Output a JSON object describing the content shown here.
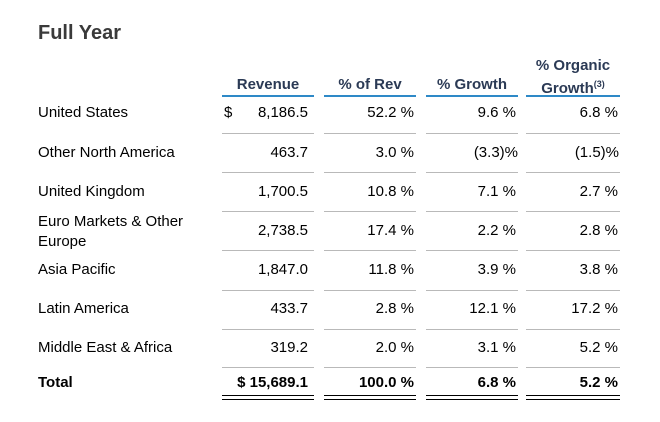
{
  "title": "Full Year",
  "columns": {
    "revenue": "Revenue",
    "pct_rev": "% of Rev",
    "pct_growth": "% Growth",
    "organic_line1": "% Organic",
    "organic_line2": "Growth",
    "organic_footnote": "(3)"
  },
  "currency_symbol": "$",
  "rows": [
    {
      "label": "United States",
      "revenue": "8,186.5",
      "pct_rev": "52.2 %",
      "growth": "9.6 %",
      "organic": "6.8 %"
    },
    {
      "label": "Other North America",
      "revenue": "463.7",
      "pct_rev": "3.0 %",
      "growth": "(3.3)%",
      "organic": "(1.5)%"
    },
    {
      "label": "United Kingdom",
      "revenue": "1,700.5",
      "pct_rev": "10.8 %",
      "growth": "7.1 %",
      "organic": "2.7 %"
    },
    {
      "label": "Euro Markets & Other Europe",
      "revenue": "2,738.5",
      "pct_rev": "17.4 %",
      "growth": "2.2 %",
      "organic": "2.8 %"
    },
    {
      "label": "Asia Pacific",
      "revenue": "1,847.0",
      "pct_rev": "11.8 %",
      "growth": "3.9 %",
      "organic": "3.8 %"
    },
    {
      "label": "Latin America",
      "revenue": "433.7",
      "pct_rev": "2.8 %",
      "growth": "12.1 %",
      "organic": "17.2 %"
    },
    {
      "label": "Middle East & Africa",
      "revenue": "319.2",
      "pct_rev": "2.0 %",
      "growth": "3.1 %",
      "organic": "5.2 %"
    }
  ],
  "total": {
    "label": "Total",
    "revenue": "$ 15,689.1",
    "pct_rev": "100.0 %",
    "growth": "6.8 %",
    "organic": "5.2 %"
  },
  "colors": {
    "header_text": "#2b3a55",
    "header_rule": "#2e89c7",
    "row_rule": "#b9b9b9",
    "title": "#3a3a3a"
  }
}
